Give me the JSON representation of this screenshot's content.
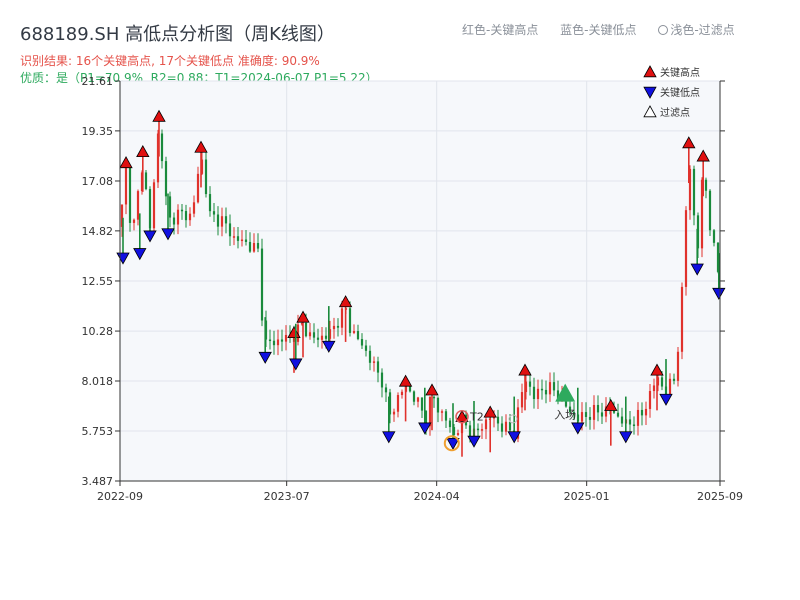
{
  "header": {
    "title": "688189.SH 高低点分析图（周K线图）",
    "legend_high": "红色-关键高点",
    "legend_low": "蓝色-关键低点",
    "legend_filtered": "浅色-过滤点",
    "result_text": "识别结果: 16个关键高点, 17个关键低点  准确度: 90.9%",
    "quality_text": "优质：是（P1=70.9%, R2=0.88；T1=2024-06-07 P1=5.22）"
  },
  "colors": {
    "up": "#e0322c",
    "down": "#1a8a3c",
    "high_marker": "#e01010",
    "low_marker": "#1010e0",
    "entry": "#2eaa5e",
    "t2": "#e06060",
    "circle": "#f0a030"
  },
  "chart_data": {
    "type": "candlestick",
    "yticks": [
      "3.487",
      "5.753",
      "8.018",
      "10.28",
      "12.55",
      "14.82",
      "17.08",
      "19.35",
      "21.61"
    ],
    "ylim": [
      3.487,
      21.61
    ],
    "xticks": [
      {
        "label": "2022-09",
        "date": "2022-09"
      },
      {
        "label": "2023-07",
        "date": "2023-07"
      },
      {
        "label": "2024-04",
        "date": "2024-04"
      },
      {
        "label": "2025-01",
        "date": "2025-01"
      },
      {
        "label": "2025-09",
        "date": "2025-09"
      }
    ],
    "legend": [
      {
        "name": "关键高点"
      },
      {
        "name": "关键低点"
      },
      {
        "name": "过滤点"
      }
    ],
    "annotations": {
      "t2": "T2",
      "entry": "入场"
    },
    "high_points": [
      {
        "t": 0.01,
        "v": 17.9
      },
      {
        "t": 0.038,
        "v": 18.4
      },
      {
        "t": 0.065,
        "v": 20.0
      },
      {
        "t": 0.135,
        "v": 18.6
      },
      {
        "t": 0.29,
        "v": 10.2
      },
      {
        "t": 0.305,
        "v": 10.9
      },
      {
        "t": 0.376,
        "v": 11.6
      },
      {
        "t": 0.476,
        "v": 8.0
      },
      {
        "t": 0.52,
        "v": 7.6
      },
      {
        "t": 0.57,
        "v": 6.4
      },
      {
        "t": 0.617,
        "v": 6.6
      },
      {
        "t": 0.675,
        "v": 8.5
      },
      {
        "t": 0.818,
        "v": 6.9
      },
      {
        "t": 0.895,
        "v": 8.5
      },
      {
        "t": 0.948,
        "v": 18.8
      },
      {
        "t": 0.972,
        "v": 18.2
      }
    ],
    "low_points": [
      {
        "t": 0.005,
        "v": 13.6
      },
      {
        "t": 0.033,
        "v": 13.8
      },
      {
        "t": 0.05,
        "v": 14.6
      },
      {
        "t": 0.08,
        "v": 14.7
      },
      {
        "t": 0.242,
        "v": 9.1
      },
      {
        "t": 0.293,
        "v": 8.8
      },
      {
        "t": 0.348,
        "v": 9.6
      },
      {
        "t": 0.448,
        "v": 5.5
      },
      {
        "t": 0.508,
        "v": 5.9
      },
      {
        "t": 0.555,
        "v": 5.2
      },
      {
        "t": 0.59,
        "v": 5.3
      },
      {
        "t": 0.657,
        "v": 5.5
      },
      {
        "t": 0.763,
        "v": 5.9
      },
      {
        "t": 0.843,
        "v": 5.5
      },
      {
        "t": 0.91,
        "v": 7.2
      },
      {
        "t": 0.962,
        "v": 13.1
      },
      {
        "t": 0.998,
        "v": 12.0
      }
    ],
    "price_path": [
      [
        0.0,
        15.0
      ],
      [
        0.01,
        17.6
      ],
      [
        0.02,
        14.5
      ],
      [
        0.038,
        18.0
      ],
      [
        0.05,
        14.9
      ],
      [
        0.065,
        19.7
      ],
      [
        0.08,
        15.2
      ],
      [
        0.095,
        15.6
      ],
      [
        0.12,
        15.5
      ],
      [
        0.135,
        18.3
      ],
      [
        0.15,
        15.5
      ],
      [
        0.17,
        15.3
      ],
      [
        0.19,
        14.5
      ],
      [
        0.215,
        14.2
      ],
      [
        0.23,
        13.9
      ],
      [
        0.24,
        9.7
      ],
      [
        0.26,
        9.8
      ],
      [
        0.29,
        10.1
      ],
      [
        0.305,
        10.6
      ],
      [
        0.32,
        9.9
      ],
      [
        0.348,
        10.1
      ],
      [
        0.376,
        11.3
      ],
      [
        0.385,
        10.3
      ],
      [
        0.405,
        9.6
      ],
      [
        0.425,
        8.6
      ],
      [
        0.44,
        7.9
      ],
      [
        0.448,
        6.3
      ],
      [
        0.46,
        7.1
      ],
      [
        0.476,
        7.8
      ],
      [
        0.495,
        7.1
      ],
      [
        0.51,
        6.3
      ],
      [
        0.52,
        7.4
      ],
      [
        0.53,
        6.8
      ],
      [
        0.545,
        6.2
      ],
      [
        0.555,
        5.5
      ],
      [
        0.57,
        6.2
      ],
      [
        0.59,
        5.6
      ],
      [
        0.617,
        6.4
      ],
      [
        0.64,
        5.9
      ],
      [
        0.657,
        5.7
      ],
      [
        0.675,
        8.2
      ],
      [
        0.69,
        7.3
      ],
      [
        0.705,
        7.7
      ],
      [
        0.725,
        7.6
      ],
      [
        0.745,
        6.8
      ],
      [
        0.763,
        6.3
      ],
      [
        0.79,
        6.6
      ],
      [
        0.818,
        6.7
      ],
      [
        0.835,
        6.3
      ],
      [
        0.843,
        6.0
      ],
      [
        0.87,
        6.5
      ],
      [
        0.895,
        8.2
      ],
      [
        0.91,
        7.5
      ],
      [
        0.925,
        8.2
      ],
      [
        0.935,
        11.0
      ],
      [
        0.948,
        18.5
      ],
      [
        0.962,
        13.5
      ],
      [
        0.972,
        17.9
      ],
      [
        0.985,
        14.6
      ],
      [
        0.998,
        12.9
      ]
    ],
    "filtered_points": [
      {
        "t": 0.655,
        "v": 6.3
      }
    ],
    "t2_marker": {
      "t": 0.57,
      "v": 6.4
    },
    "entry_marker": {
      "t": 0.742,
      "v": 7.4
    },
    "circle_marker": {
      "t": 0.553,
      "v": 5.2
    },
    "date_range": {
      "start": "2022-09",
      "end": "2025-09"
    }
  }
}
